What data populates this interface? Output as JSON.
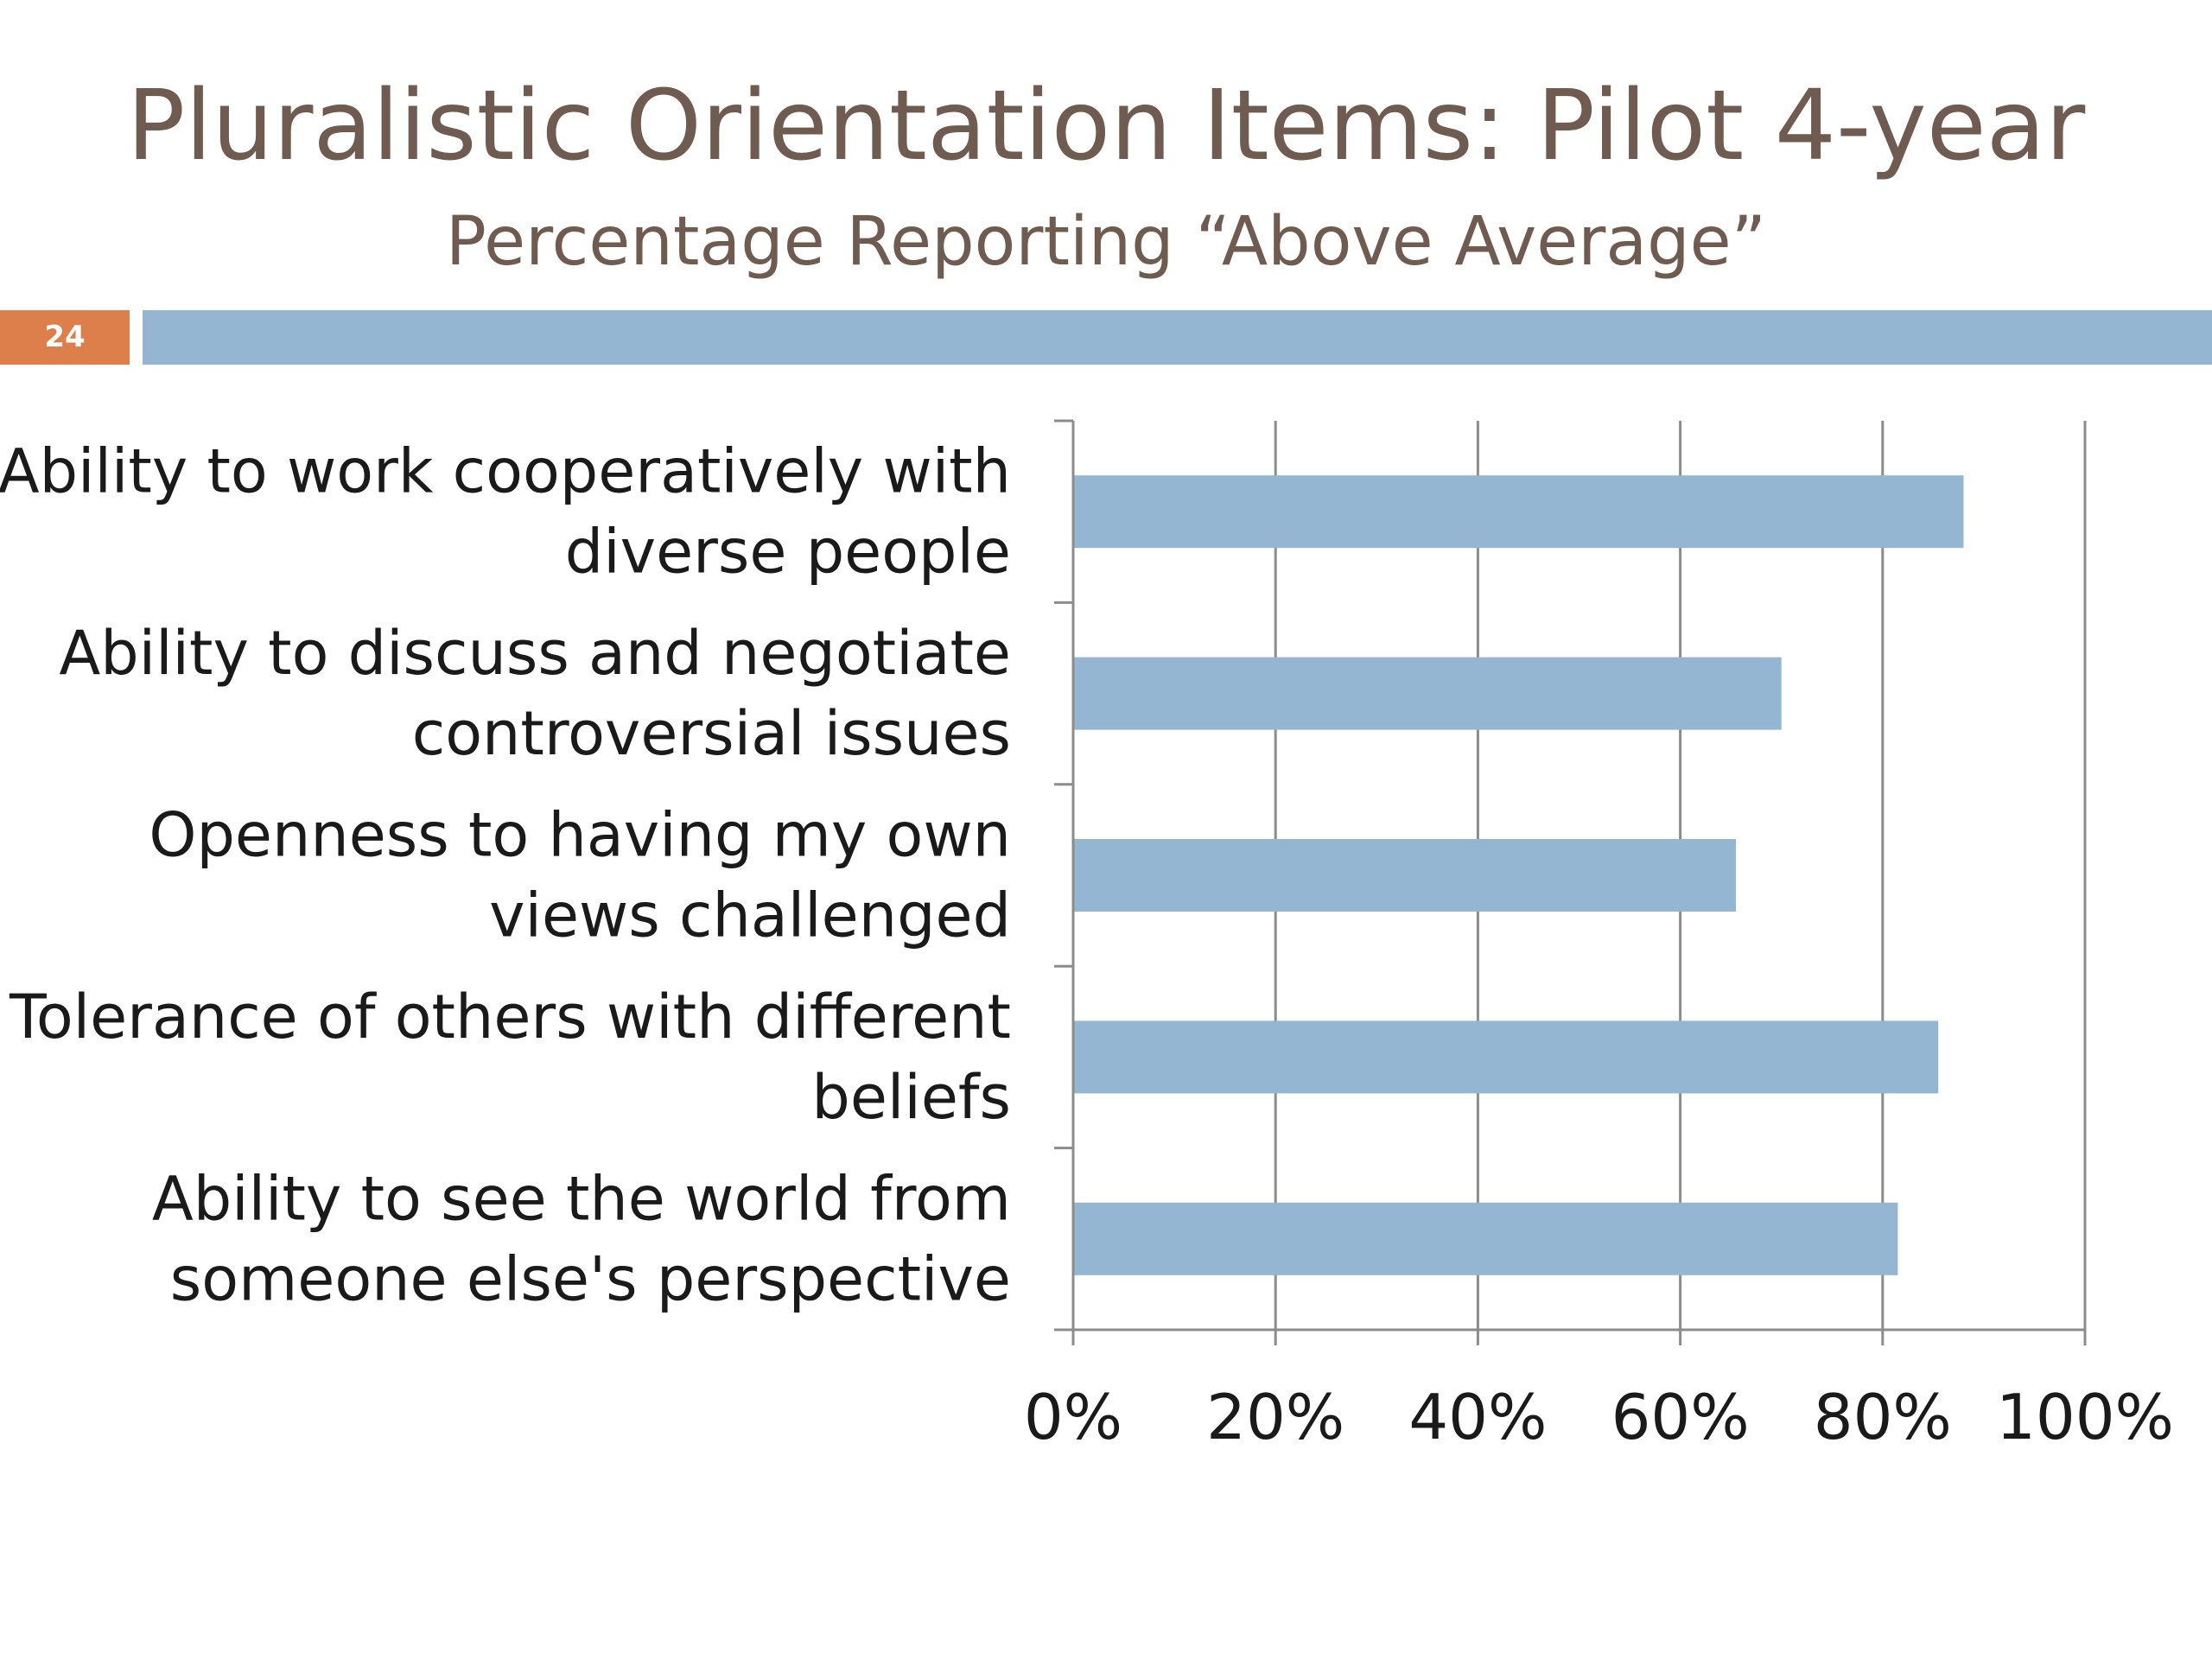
{
  "slide": {
    "title": "Pluralistic Orientation Items: Pilot 4-year",
    "subtitle": "Percentage Reporting “Above Average”",
    "number": "24"
  },
  "colors": {
    "bar": "#94b6d2",
    "title": "#6f5b4f",
    "accent": "#dd7f4a",
    "gridline": "#8c8c8c",
    "label": "#1a1a1a"
  },
  "chart_data": {
    "type": "bar",
    "orientation": "horizontal",
    "title": "",
    "xlabel": "",
    "ylabel": "",
    "categories": [
      [
        "Ability to work cooperatively with",
        "diverse people"
      ],
      [
        "Ability to discuss and negotiate",
        "controversial issues"
      ],
      [
        "Openness to having my own",
        "views challenged"
      ],
      [
        "Tolerance of others with different",
        "beliefs"
      ],
      [
        "Ability to see the world from",
        "someone else's perspective"
      ]
    ],
    "values": [
      88,
      70,
      65.5,
      85.5,
      81.5
    ],
    "xlim": [
      0,
      100
    ],
    "xticks": [
      0,
      20,
      40,
      60,
      80,
      100
    ],
    "xtick_labels": [
      "0%",
      "20%",
      "40%",
      "60%",
      "80%",
      "100%"
    ],
    "grid": "vertical",
    "legend": "none"
  }
}
